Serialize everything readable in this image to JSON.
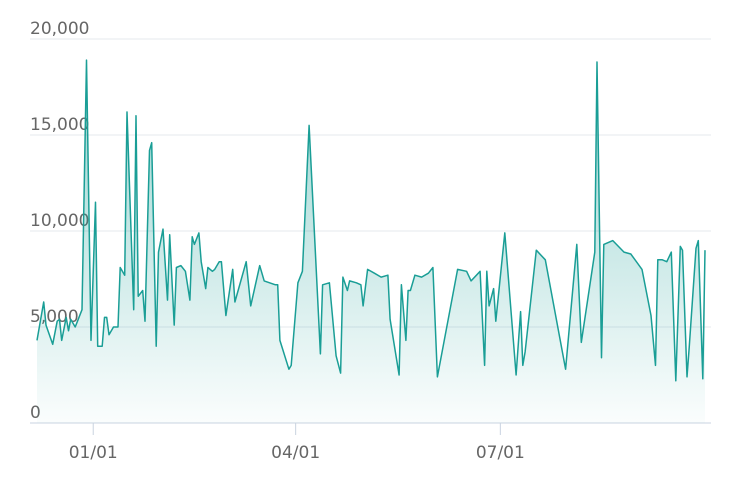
{
  "chart_data": {
    "type": "area",
    "color": "#1a9e96",
    "grid": true,
    "x": [
      "12/07",
      "12/10",
      "12/11",
      "12/14",
      "12/16",
      "12/17",
      "12/18",
      "12/20",
      "12/21",
      "12/22",
      "12/24",
      "12/25",
      "12/27",
      "12/29",
      "12/31",
      "01/02",
      "01/03",
      "01/05",
      "01/06",
      "01/07",
      "01/08",
      "01/10",
      "01/12",
      "01/13",
      "01/15",
      "01/16",
      "01/19",
      "01/20",
      "01/21",
      "01/23",
      "01/24",
      "01/26",
      "01/27",
      "01/29",
      "01/30",
      "02/01",
      "02/03",
      "02/04",
      "02/06",
      "02/07",
      "02/09",
      "02/11",
      "02/13",
      "02/14",
      "02/15",
      "02/17",
      "02/18",
      "02/20",
      "02/21",
      "02/23",
      "02/24",
      "02/26",
      "02/27",
      "03/01",
      "03/04",
      "03/05",
      "03/10",
      "03/12",
      "03/16",
      "03/18",
      "03/23",
      "03/24",
      "03/25",
      "03/29",
      "03/30",
      "04/02",
      "04/04",
      "04/07",
      "04/12",
      "04/13",
      "04/16",
      "04/19",
      "04/21",
      "04/22",
      "04/24",
      "04/25",
      "04/28",
      "04/30",
      "05/01",
      "05/03",
      "05/06",
      "05/09",
      "05/12",
      "05/13",
      "05/17",
      "05/18",
      "05/20",
      "05/21",
      "05/22",
      "05/24",
      "05/27",
      "05/30",
      "06/01",
      "06/03",
      "06/12",
      "06/16",
      "06/18",
      "06/22",
      "06/24",
      "06/25",
      "06/26",
      "06/28",
      "06/29",
      "07/03",
      "07/08",
      "07/10",
      "07/11",
      "07/12",
      "07/17",
      "07/21",
      "07/30",
      "08/04",
      "08/06",
      "08/12",
      "08/13",
      "08/15",
      "08/16",
      "08/20",
      "08/25",
      "08/28",
      "09/02",
      "09/06",
      "09/08",
      "09/09",
      "09/11",
      "09/13",
      "09/15",
      "09/17",
      "09/19",
      "09/20",
      "09/22",
      "09/23",
      "09/26",
      "09/27",
      "09/29",
      "09/30"
    ],
    "values": [
      4300,
      6300,
      5100,
      4100,
      5300,
      5400,
      4300,
      5500,
      4800,
      5400,
      5000,
      5300,
      5900,
      18900,
      4300,
      11500,
      4000,
      4000,
      5500,
      5500,
      4600,
      5000,
      5000,
      8100,
      7700,
      16200,
      5900,
      16000,
      6600,
      6900,
      5300,
      14200,
      14600,
      4000,
      8900,
      10100,
      6400,
      9800,
      5100,
      8100,
      8200,
      7900,
      6400,
      9700,
      9300,
      9900,
      8400,
      7000,
      8100,
      7900,
      8000,
      8400,
      8400,
      5600,
      8000,
      6300,
      8400,
      6100,
      8200,
      7400,
      7200,
      7200,
      4300,
      2800,
      3000,
      7300,
      7900,
      15500,
      3600,
      7200,
      7300,
      3500,
      2600,
      7600,
      6900,
      7400,
      7300,
      7200,
      6100,
      8000,
      7800,
      7600,
      7700,
      5400,
      2500,
      7200,
      4300,
      6900,
      6900,
      7700,
      7600,
      7800,
      8100,
      2400,
      8000,
      7900,
      7400,
      7900,
      3000,
      7900,
      6100,
      7000,
      5300,
      9900,
      2500,
      5800,
      3000,
      3700,
      9000,
      8500,
      2800,
      9300,
      4200,
      8900,
      18800,
      3400,
      9300,
      9500,
      8900,
      8800,
      8000,
      5600,
      3000,
      8500,
      8500,
      8400,
      8900,
      2200,
      9200,
      9000,
      2400,
      4000,
      9100,
      9500,
      2300,
      9000
    ],
    "xlim": [
      "12/07",
      "09/30"
    ],
    "xticks": [
      "01/01",
      "04/01",
      "07/01"
    ],
    "ylim": [
      0,
      20000
    ],
    "yticks": [
      0,
      {
        "value": 5000,
        "label": "5,000"
      },
      {
        "value": 10000,
        "label": "10,000"
      },
      {
        "value": 15000,
        "label": "15,000"
      },
      {
        "value": 20000,
        "label": "20,000"
      }
    ]
  }
}
